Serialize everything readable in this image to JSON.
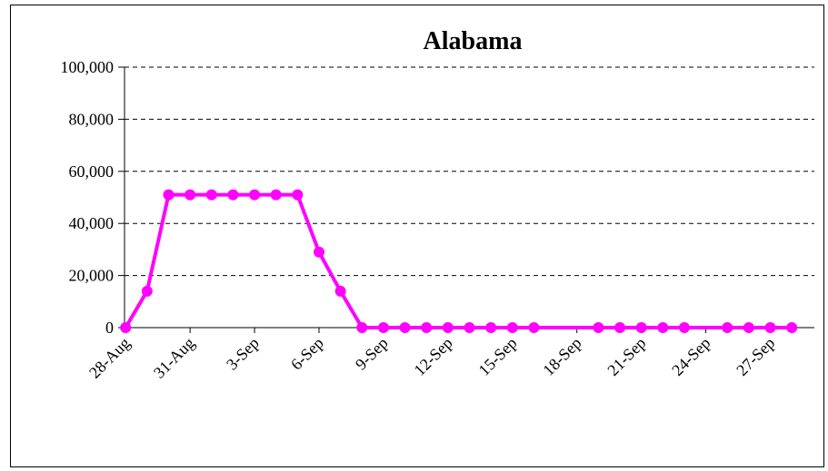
{
  "chart_data": {
    "type": "line",
    "title": "Alabama",
    "xlabel": "",
    "ylabel": "",
    "ylim": [
      0,
      100000
    ],
    "y_ticks": [
      0,
      20000,
      40000,
      60000,
      80000,
      100000
    ],
    "y_tick_labels": [
      "0",
      "20,000",
      "40,000",
      "60,000",
      "80,000",
      "100,000"
    ],
    "x_range": [
      "2005-08-28",
      "2005-09-29"
    ],
    "x_tick_labels": [
      "28-Aug",
      "31-Aug",
      "3-Sep",
      "6-Sep",
      "9-Sep",
      "12-Sep",
      "15-Sep",
      "18-Sep",
      "21-Sep",
      "24-Sep",
      "27-Sep"
    ],
    "grid": "horizontal dashed",
    "legend": "none",
    "line_color": "#ff00ff",
    "series": [
      {
        "x": [
          "2005-08-28",
          "2005-08-29",
          "2005-08-30",
          "2005-08-31",
          "2005-09-01",
          "2005-09-02",
          "2005-09-03",
          "2005-09-04",
          "2005-09-05",
          "2005-09-06",
          "2005-09-07",
          "2005-09-08",
          "2005-09-09",
          "2005-09-10",
          "2005-09-11",
          "2005-09-12",
          "2005-09-13",
          "2005-09-14",
          "2005-09-15",
          "2005-09-16",
          "2005-09-19",
          "2005-09-20",
          "2005-09-21",
          "2005-09-22",
          "2005-09-23",
          "2005-09-25",
          "2005-09-26",
          "2005-09-27",
          "2005-09-28"
        ],
        "values": [
          0,
          14000,
          51000,
          51000,
          51000,
          51000,
          51000,
          51000,
          51000,
          29000,
          14000,
          0,
          0,
          0,
          0,
          0,
          0,
          0,
          0,
          0,
          0,
          0,
          0,
          0,
          0,
          0,
          0,
          0,
          0
        ]
      }
    ]
  }
}
